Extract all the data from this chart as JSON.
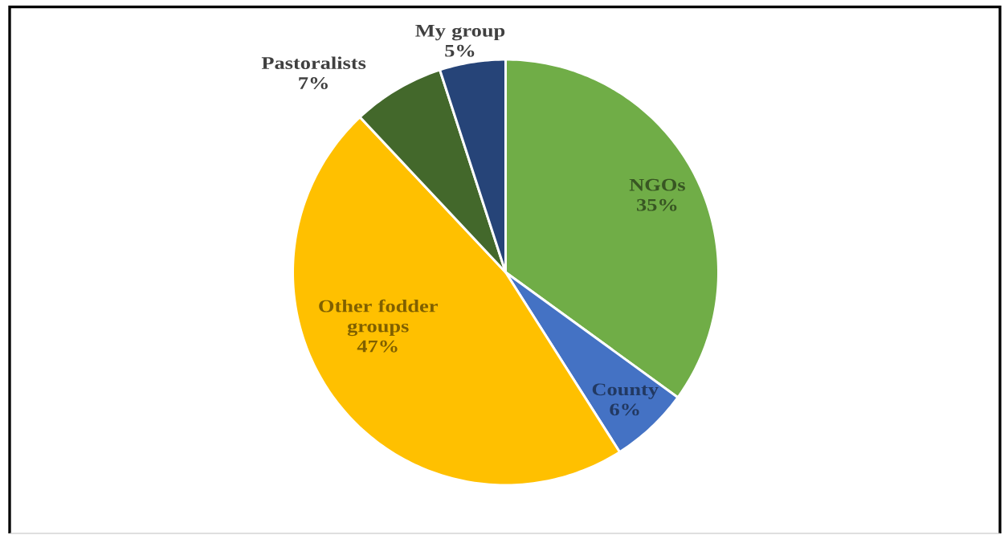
{
  "chart_data": {
    "type": "pie",
    "categories": [
      "NGOs",
      "County",
      "Other fodder groups",
      "Pastoralists",
      "My group"
    ],
    "values": [
      35,
      6,
      47,
      7,
      5
    ],
    "value_labels": [
      "35%",
      "6%",
      "47%",
      "7%",
      "5%"
    ],
    "colors": [
      "#70ad47",
      "#4472c4",
      "#ffc000",
      "#43682b",
      "#264478"
    ]
  }
}
